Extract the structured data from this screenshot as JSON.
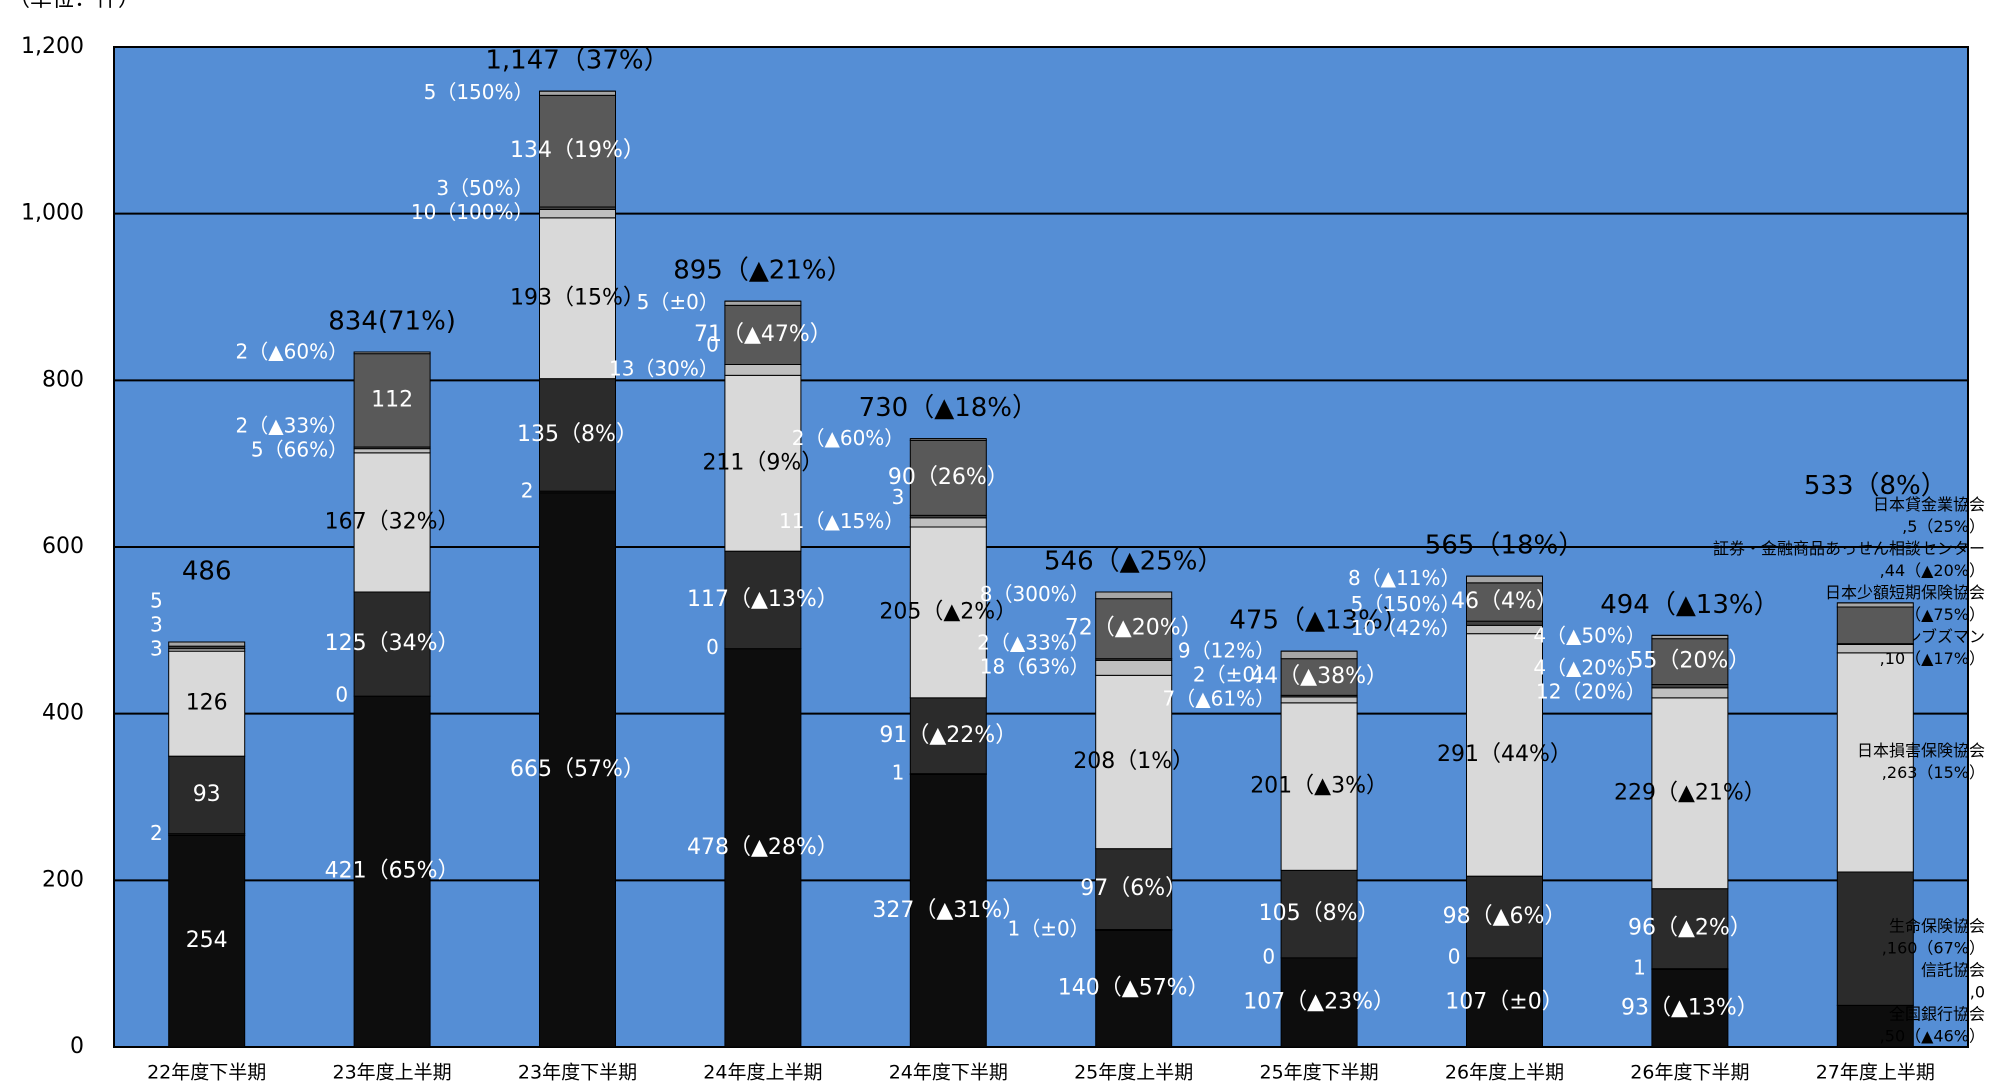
{
  "chart_data": {
    "type": "stacked_bar",
    "unit": "（単位：件）",
    "categories": [
      "22年度下半期",
      "23年度上半期",
      "23年度下半期",
      "24年度上半期",
      "24年度下半期",
      "25年度上半期",
      "25年度下半期",
      "26年度上半期",
      "26年度下半期",
      "27年度上半期"
    ],
    "series": [
      {
        "name": "全国銀行協会",
        "color": "#0d0d0d",
        "values": [
          254,
          421,
          665,
          478,
          327,
          140,
          107,
          107,
          93,
          50
        ],
        "value_labels": [
          "254",
          "421（65%）",
          "665（57%）",
          "478（▲28%）",
          "327（▲31%）",
          "140（▲57%）",
          "107（▲23%）",
          "107（±0）",
          "93（▲13%）",
          ",50（▲46%）"
        ]
      },
      {
        "name": "信託協会",
        "color": "#1a1a1a",
        "values": [
          2,
          0,
          2,
          0,
          1,
          1,
          0,
          0,
          1,
          0
        ],
        "value_labels": [
          "2",
          "0",
          "2",
          "0",
          "1",
          "1（±0）",
          "0",
          "0",
          "1",
          ",0"
        ]
      },
      {
        "name": "生命保険協会",
        "color": "#2b2b2b",
        "values": [
          93,
          125,
          135,
          117,
          91,
          97,
          105,
          98,
          96,
          160
        ],
        "value_labels": [
          "93",
          "125（34%）",
          "135（8%）",
          "117（▲13%）",
          "91（▲22%）",
          "97（6%）",
          "105（8%）",
          "98（▲6%）",
          "96（▲2%）",
          ",160（67%）"
        ]
      },
      {
        "name": "日本損害保険協会",
        "color": "#d9d9d9",
        "values": [
          126,
          167,
          193,
          211,
          205,
          208,
          201,
          291,
          229,
          263
        ],
        "value_labels": [
          "126",
          "167（32%）",
          "193（15%）",
          "211（9%）",
          "205（▲2%）",
          "208（1%）",
          "201（▲3%）",
          "291（44%）",
          "229（▲21%）",
          ",263（15%）"
        ]
      },
      {
        "name": "保険オンブズマン",
        "color": "#bfbfbf",
        "values": [
          3,
          5,
          10,
          13,
          11,
          18,
          7,
          10,
          12,
          10
        ],
        "value_labels": [
          "3",
          "5（66%）",
          "10（100%）",
          "13（30%）",
          "11（▲15%）",
          "18（63%）",
          "7（▲61%）",
          "10（42%）",
          "12（20%）",
          ",10（▲17%）"
        ]
      },
      {
        "name": "日本少額短期保険協会",
        "color": "#404040",
        "values": [
          3,
          2,
          3,
          0,
          3,
          2,
          2,
          5,
          4,
          1
        ],
        "value_labels": [
          "3",
          "2（▲33%）",
          "3（50%）",
          "0",
          "3",
          "2（▲33%）",
          "2（±0）",
          "5（150%）",
          "4（▲20%）",
          ",1（▲75%）"
        ]
      },
      {
        "name": "証券・金融商品あっせん相談センター",
        "color": "#595959",
        "values": [
          null,
          112,
          134,
          71,
          90,
          72,
          44,
          46,
          55,
          44
        ],
        "value_labels": [
          null,
          "112",
          "134（19%）",
          "71（▲47%）",
          "90（26%）",
          "72（▲20%）",
          "44（▲38%）",
          "46（4%）",
          "55（20%）",
          ",44（▲20%）"
        ]
      },
      {
        "name": "日本貸金業協会",
        "color": "#a6a6a6",
        "values": [
          5,
          2,
          5,
          5,
          2,
          8,
          9,
          8,
          4,
          5
        ],
        "value_labels": [
          "5",
          "2（▲60%）",
          "5（150%）",
          "5（±0）",
          "2（▲60%）",
          "8（300%）",
          "9（12%）",
          "8（▲11%）",
          "4（▲50%）",
          ",5（25%）"
        ]
      }
    ],
    "totals": [
      486,
      834,
      1147,
      895,
      730,
      546,
      475,
      565,
      494,
      533
    ],
    "total_labels": [
      "486",
      "834(71%)",
      "1,147（37%）",
      "895（▲21%）",
      "730（▲18%）",
      "546（▲25%）",
      "475（▲13%）",
      "565（18%）",
      "494（▲13%）",
      "533（8%）"
    ],
    "ylim": [
      0,
      1200
    ],
    "yticks": [
      0,
      200,
      400,
      600,
      800,
      {
        "value": 1000,
        "label": "1,000"
      },
      {
        "value": 1200,
        "label": "1,200"
      }
    ],
    "grid": true,
    "plot_color": "#558ed5"
  }
}
